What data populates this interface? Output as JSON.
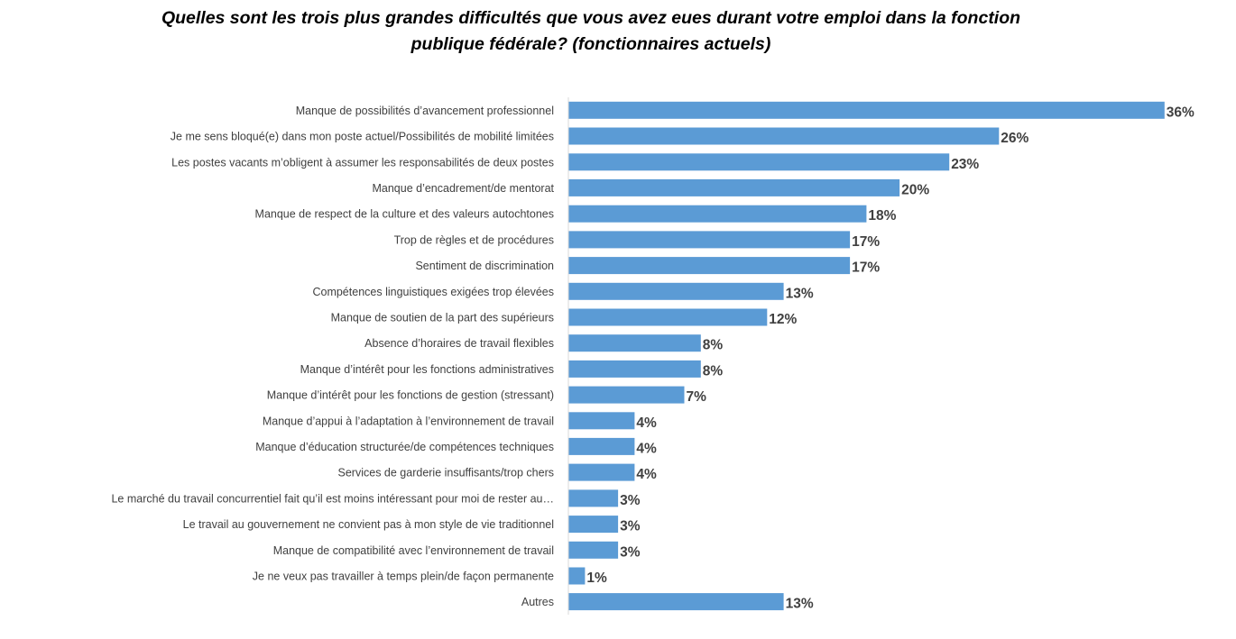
{
  "chart_data": {
    "type": "bar",
    "orientation": "horizontal",
    "title_lines": [
      "Quelles sont les trois plus grandes difficultés que vous avez eues durant votre emploi dans la fonction",
      "publique fédérale? (fonctionnaires actuels)"
    ],
    "categories": [
      "Manque de possibilités d’avancement professionnel",
      "Je me sens bloqué(e) dans mon poste actuel/Possibilités de mobilité limitées",
      "Les postes vacants m’obligent à assumer les responsabilités de deux postes",
      "Manque d’encadrement/de mentorat",
      "Manque de respect de la culture et des valeurs autochtones",
      "Trop de règles et de procédures",
      "Sentiment de discrimination",
      "Compétences linguistiques exigées trop élevées",
      "Manque de soutien de la part des supérieurs",
      "Absence d’horaires de travail flexibles",
      "Manque d’intérêt pour les fonctions administratives",
      "Manque d’intérêt pour les fonctions de gestion (stressant)",
      "Manque d’appui à l’adaptation à l’environnement de travail",
      "Manque d’éducation structurée/de compétences techniques",
      "Services de garderie insuffisants/trop chers",
      "Le marché du travail concurrentiel fait qu’il est moins intéressant pour moi de rester au…",
      "Le travail au gouvernement ne convient pas à mon style de vie traditionnel",
      "Manque de compatibilité avec l’environnement de travail",
      "Je ne veux pas travailler à temps plein/de façon permanente",
      "Autres"
    ],
    "values": [
      36,
      26,
      23,
      20,
      18,
      17,
      17,
      13,
      12,
      8,
      8,
      7,
      4,
      4,
      4,
      3,
      3,
      3,
      1,
      13
    ],
    "value_labels": [
      "36%",
      "26%",
      "23%",
      "20%",
      "18%",
      "17%",
      "17%",
      "13%",
      "12%",
      "8%",
      "8%",
      "7%",
      "4%",
      "4%",
      "4%",
      "3%",
      "3%",
      "3%",
      "1%",
      "13%"
    ],
    "xlim": [
      0,
      36.5
    ],
    "gridlines": false,
    "legend": "none",
    "bar_color": "#5b9bd5",
    "axis_color": "#d9d9d9",
    "text_color": "#404040"
  }
}
